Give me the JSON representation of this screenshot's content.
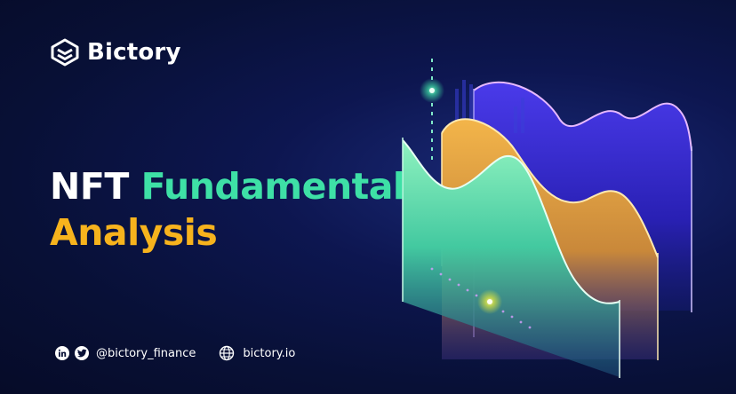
{
  "brand": {
    "name": "Bictory",
    "colors": {
      "white": "#ffffff",
      "teal": "#3ee0a6",
      "gold": "#f7b31d",
      "purple": "#5a3ff0",
      "bg": "#081036"
    }
  },
  "headline": {
    "word1": "NFT",
    "word2": "Fundamental",
    "word3": "Analysis"
  },
  "footer": {
    "icons": [
      "linkedin-icon",
      "twitter-icon",
      "globe-icon"
    ],
    "handle": "@bictory_finance",
    "website": "bictory.io"
  }
}
